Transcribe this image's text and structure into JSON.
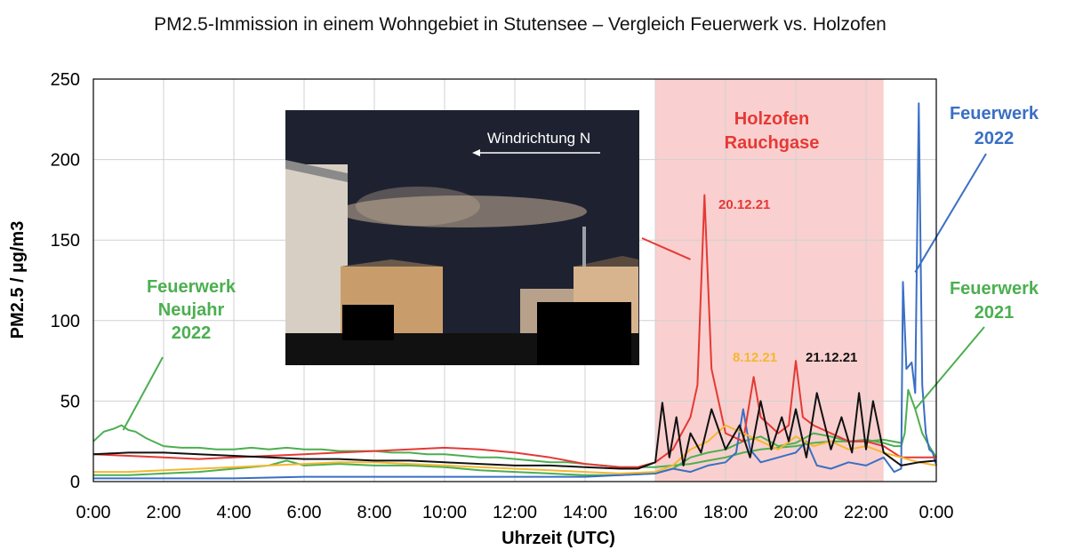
{
  "chart_data": {
    "type": "line",
    "title": "PM2.5-Immission in einem Wohngebiet in Stutensee – Vergleich Feuerwerk vs. Holzofen",
    "xlabel": "Uhrzeit (UTC)",
    "ylabel": "PM2.5 / µg/m3",
    "xlim": [
      0,
      24
    ],
    "ylim": [
      0,
      250
    ],
    "grid": true,
    "x_ticks": [
      "0:00",
      "2:00",
      "4:00",
      "6:00",
      "8:00",
      "10:00",
      "12:00",
      "14:00",
      "16:00",
      "18:00",
      "20:00",
      "22:00",
      "0:00"
    ],
    "y_ticks": [
      "0",
      "50",
      "100",
      "150",
      "200",
      "250"
    ],
    "highlight_region": {
      "x": [
        16.0,
        22.5
      ],
      "color": "#f9d0cf",
      "label_lines": [
        "Holzofen",
        "Rauchgase"
      ]
    },
    "photo": {
      "caption": "Windrichtung N"
    },
    "series": [
      {
        "label": "Feuerwerk Neujahr 2022",
        "color": "#4caf50",
        "x": [
          0,
          0.3,
          0.6,
          0.8,
          1.0,
          1.2,
          1.5,
          1.8,
          2,
          2.5,
          3,
          3.5,
          4,
          4.5,
          5,
          5.5,
          6,
          6.5,
          7,
          7.5,
          8,
          8.5,
          9,
          9.5,
          10,
          10.5,
          11,
          11.5,
          12,
          12.5,
          13,
          13.5,
          14,
          14.5,
          15,
          15.5,
          16,
          16.5,
          17,
          17.5,
          18,
          18.5,
          19,
          19.5,
          20,
          20.5,
          21,
          21.5,
          22,
          22.5,
          23
        ],
        "y": [
          25,
          31,
          33,
          35,
          32,
          31,
          27,
          24,
          22,
          21,
          21,
          20,
          20,
          21,
          20,
          21,
          20,
          20,
          19,
          19,
          19,
          18,
          18,
          17,
          17,
          16,
          15,
          15,
          14,
          13,
          12,
          12,
          11,
          10,
          9,
          9,
          9,
          10,
          11,
          13,
          15,
          18,
          20,
          21,
          22,
          24,
          25,
          25,
          25,
          26,
          24
        ]
      },
      {
        "label": "Feuerwerk 2021",
        "color": "#4caf50",
        "x": [
          0,
          1,
          2,
          3,
          4,
          5,
          5.5,
          6,
          7,
          8,
          9,
          10,
          10.5,
          11,
          12,
          13,
          14,
          15,
          16,
          16.5,
          17,
          17.5,
          18,
          18.5,
          19,
          19.5,
          20,
          20.5,
          21,
          21.5,
          22,
          22.5,
          22.8,
          23,
          23.1,
          23.2,
          23.4,
          23.6,
          23.8,
          24
        ],
        "y": [
          4,
          4,
          5,
          6,
          8,
          10,
          13,
          10,
          11,
          10,
          10,
          9,
          8,
          7,
          6,
          5,
          4,
          4,
          5,
          8,
          15,
          18,
          20,
          25,
          28,
          22,
          24,
          30,
          28,
          25,
          26,
          24,
          22,
          22,
          30,
          57,
          45,
          30,
          22,
          15
        ]
      },
      {
        "label": "Feuerwerk 2022",
        "color": "#3a6fc4",
        "x": [
          0,
          2,
          4,
          6,
          8,
          10,
          12,
          14,
          15,
          16,
          16.5,
          17,
          17.5,
          18,
          18.3,
          18.5,
          18.7,
          19,
          19.5,
          20,
          20.3,
          20.6,
          21,
          21.5,
          22,
          22.5,
          22.8,
          23,
          23.05,
          23.15,
          23.3,
          23.4,
          23.5,
          23.6,
          23.7,
          23.8,
          23.9,
          24
        ],
        "y": [
          2,
          2,
          2,
          3,
          3,
          3,
          3,
          3,
          4,
          5,
          8,
          6,
          10,
          12,
          18,
          45,
          20,
          12,
          15,
          18,
          25,
          10,
          8,
          12,
          10,
          15,
          6,
          8,
          124,
          70,
          74,
          55,
          235,
          60,
          30,
          20,
          18,
          10
        ]
      },
      {
        "label": "20.12.21",
        "color": "#e53935",
        "x": [
          0,
          1,
          2,
          3,
          4,
          5,
          6,
          7,
          8,
          9,
          10,
          11,
          12,
          13,
          14,
          15,
          15.5,
          16,
          16.5,
          17,
          17.2,
          17.4,
          17.6,
          17.8,
          18,
          18.5,
          18.8,
          19,
          19.5,
          19.8,
          20,
          20.2,
          20.5,
          21,
          21.5,
          22,
          22.5,
          23,
          23.5,
          24
        ],
        "y": [
          17,
          16,
          15,
          14,
          15,
          16,
          17,
          18,
          19,
          20,
          21,
          20,
          18,
          15,
          11,
          9,
          9,
          12,
          20,
          40,
          60,
          178,
          70,
          50,
          30,
          25,
          65,
          40,
          30,
          35,
          75,
          40,
          35,
          30,
          25,
          25,
          22,
          15,
          15,
          15
        ]
      },
      {
        "label": "8.12.21",
        "color": "#f5b731",
        "x": [
          0,
          1,
          2,
          3,
          4,
          5,
          6,
          7,
          8,
          9,
          10,
          11,
          12,
          13,
          14,
          15,
          16,
          16.5,
          17,
          17.5,
          18,
          18.5,
          19,
          19.5,
          20,
          20.5,
          21,
          21.5,
          22,
          22.5,
          23,
          23.5,
          24
        ],
        "y": [
          6,
          6,
          7,
          8,
          9,
          10,
          11,
          12,
          12,
          11,
          10,
          9,
          8,
          7,
          6,
          5,
          6,
          10,
          20,
          25,
          35,
          30,
          25,
          20,
          28,
          22,
          25,
          20,
          22,
          18,
          15,
          12,
          10
        ]
      },
      {
        "label": "21.12.21",
        "color": "#111111",
        "x": [
          0,
          1,
          2,
          3,
          4,
          5,
          6,
          7,
          8,
          9,
          10,
          11,
          12,
          13,
          14,
          15,
          15.5,
          16,
          16.2,
          16.4,
          16.6,
          16.8,
          17,
          17.3,
          17.6,
          18,
          18.4,
          18.7,
          19,
          19.3,
          19.6,
          19.8,
          20,
          20.3,
          20.6,
          21,
          21.3,
          21.6,
          21.8,
          22,
          22.2,
          22.5,
          23,
          23.5,
          24
        ],
        "y": [
          17,
          18,
          18,
          17,
          16,
          15,
          14,
          14,
          13,
          13,
          12,
          11,
          10,
          10,
          9,
          8,
          8,
          12,
          49,
          15,
          40,
          10,
          30,
          18,
          45,
          20,
          35,
          15,
          50,
          20,
          40,
          25,
          45,
          15,
          55,
          20,
          40,
          18,
          55,
          20,
          50,
          18,
          10,
          12,
          13
        ]
      }
    ],
    "annotations": [
      {
        "text": "Feuerwerk",
        "color": "#4caf50"
      },
      {
        "text": "Neujahr",
        "color": "#4caf50"
      },
      {
        "text": "2022",
        "color": "#4caf50"
      },
      {
        "text": "Feuerwerk",
        "color": "#3a6fc4"
      },
      {
        "text": "2022",
        "color": "#3a6fc4"
      },
      {
        "text": "Feuerwerk",
        "color": "#4caf50"
      },
      {
        "text": "2021",
        "color": "#4caf50"
      },
      {
        "text": "20.12.21",
        "color": "#e53935"
      },
      {
        "text": "8.12.21",
        "color": "#f5b731"
      },
      {
        "text": "21.12.21",
        "color": "#111111"
      }
    ]
  }
}
